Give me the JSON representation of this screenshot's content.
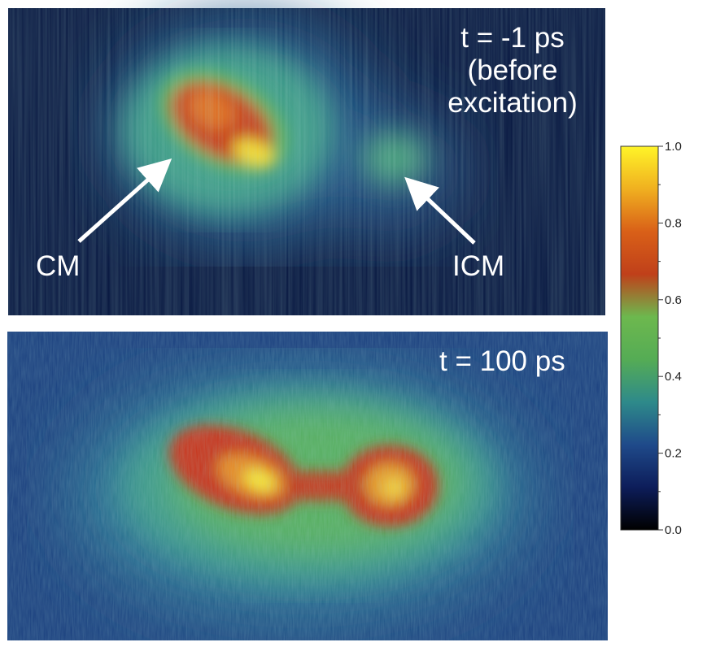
{
  "panels": {
    "top": {
      "time_label": "t = -1 ps",
      "time_sub1": "(before",
      "time_sub2": "excitation)",
      "arrow_left_label": "CM",
      "arrow_right_label": "ICM"
    },
    "bottom": {
      "time_label": "t = 100 ps"
    }
  },
  "colorbar": {
    "ticks": [
      "1.0",
      "0.8",
      "0.6",
      "0.4",
      "0.2",
      "0.0"
    ],
    "colormap": [
      "#000000",
      "#0d1d5a",
      "#1f4a8a",
      "#2e8a8a",
      "#55ac55",
      "#6db84e",
      "#c0401a",
      "#d96018",
      "#f0b020",
      "#fff428"
    ]
  }
}
